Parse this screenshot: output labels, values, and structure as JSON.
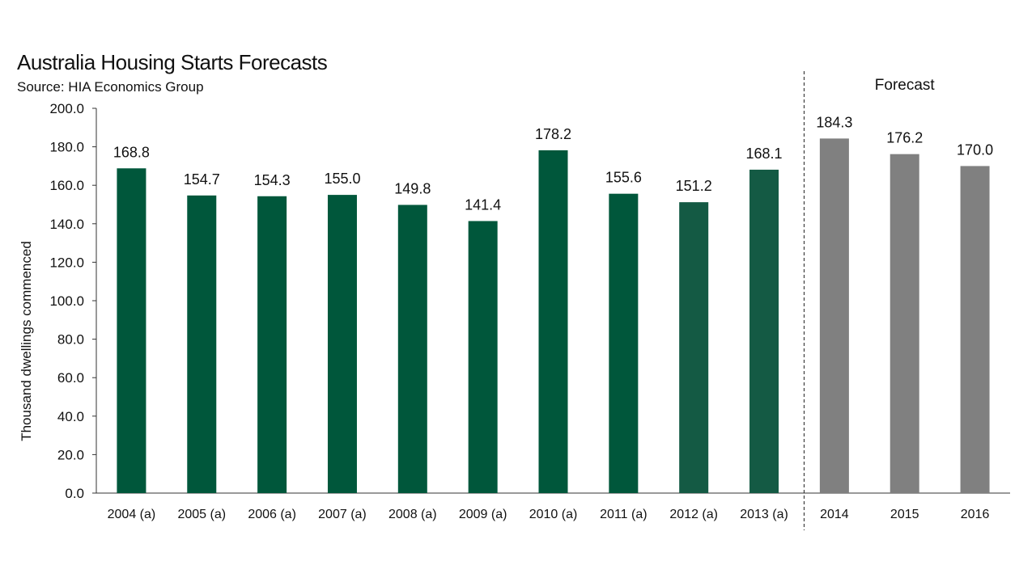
{
  "chart_data": {
    "type": "bar",
    "title": "Australia Housing Starts Forecasts",
    "subtitle": "Source: HIA Economics Group",
    "ylabel": "Thousand dwellings commenced",
    "xlabel": "",
    "ylim": [
      0,
      200
    ],
    "yticks": [
      "0.0",
      "20.0",
      "40.0",
      "60.0",
      "80.0",
      "100.0",
      "120.0",
      "140.0",
      "160.0",
      "180.0",
      "200.0"
    ],
    "categories": [
      "2004 (a)",
      "2005 (a)",
      "2006 (a)",
      "2007 (a)",
      "2008 (a)",
      "2009 (a)",
      "2010 (a)",
      "2011 (a)",
      "2012 (a)",
      "2013 (a)",
      "2014",
      "2015",
      "2016"
    ],
    "values": [
      168.8,
      154.7,
      154.3,
      155.0,
      149.8,
      141.4,
      178.2,
      155.6,
      151.2,
      168.1,
      184.3,
      176.2,
      170.0
    ],
    "labels": [
      "168.8",
      "154.7",
      "154.3",
      "155.0",
      "149.8",
      "141.4",
      "178.2",
      "155.6",
      "151.2",
      "168.1",
      "184.3",
      "176.2",
      "170.0"
    ],
    "forecast_label": "Forecast",
    "forecast_start_index": 10,
    "colors": {
      "actual": "#00573b",
      "actual_late": "#145a44",
      "forecast": "#808080"
    },
    "grid": false
  }
}
